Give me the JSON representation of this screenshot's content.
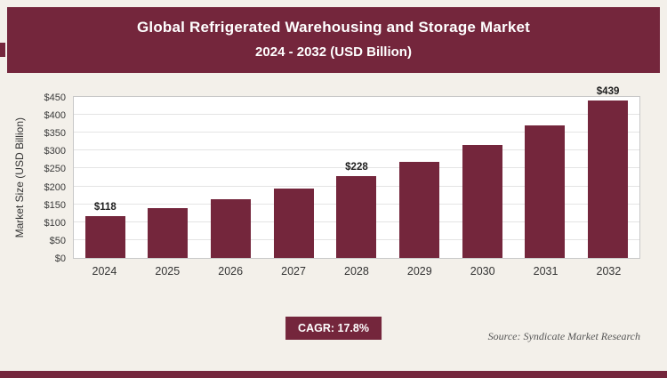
{
  "header": {
    "title_line1": "Global Refrigerated Warehousing and Storage Market",
    "title_line2": "2024 - 2032 (USD Billion)"
  },
  "chart_data": {
    "type": "bar",
    "title": "Global Refrigerated Warehousing and Storage Market 2024 - 2032 (USD Billion)",
    "categories": [
      "2024",
      "2025",
      "2026",
      "2027",
      "2028",
      "2029",
      "2030",
      "2031",
      "2032"
    ],
    "values": [
      118,
      139,
      163,
      193,
      228,
      268,
      316,
      371,
      439
    ],
    "labels": [
      "$118",
      "",
      "",
      "",
      "$228",
      "",
      "",
      "",
      "$439"
    ],
    "xlabel": "",
    "ylabel": "Market Size (USD Billion)",
    "ylim": [
      0,
      450
    ],
    "ytick_step": 50,
    "ytick_labels": [
      "$0",
      "$50",
      "$100",
      "$150",
      "$200",
      "$250",
      "$300",
      "$350",
      "$400",
      "$450"
    ],
    "bar_color": "#74263c",
    "grid": true,
    "legend": "none"
  },
  "footer": {
    "cagr_label": "CAGR: 17.8%",
    "source": "Source: Syndicate Market Research"
  },
  "colors": {
    "accent": "#74263c",
    "background": "#f3f0ea",
    "plot_background": "#ffffff",
    "gridline": "#e4e4e4"
  }
}
